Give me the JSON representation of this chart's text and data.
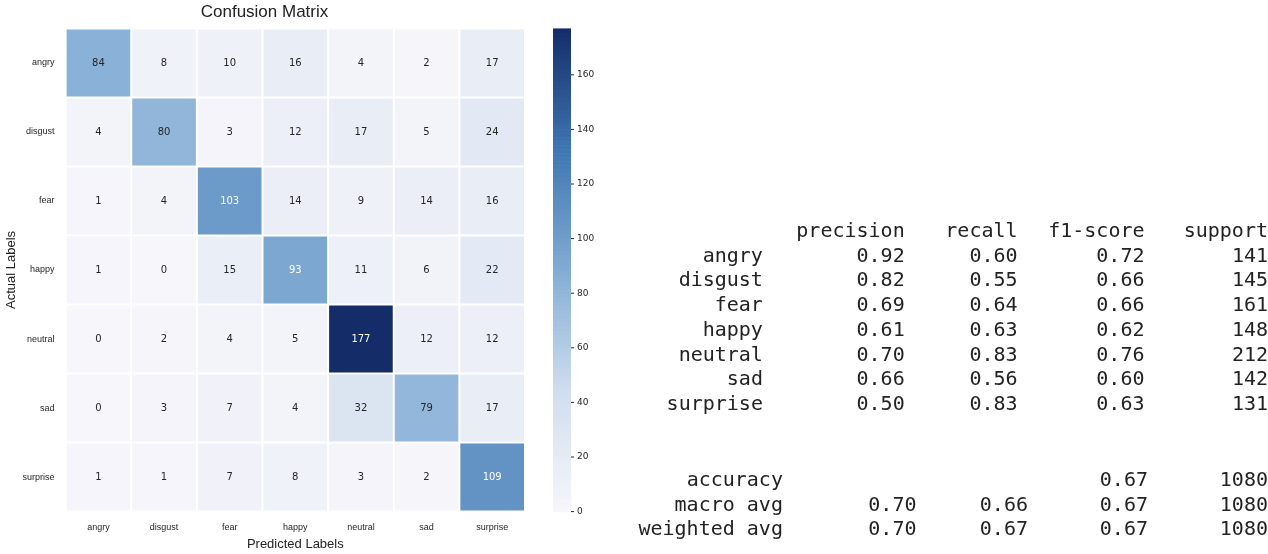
{
  "chart_data": [
    {
      "type": "heatmap",
      "title": "Confusion Matrix",
      "xlabel": "Predicted Labels",
      "ylabel": "Actual Labels",
      "categories": [
        "angry",
        "disgust",
        "fear",
        "happy",
        "neutral",
        "sad",
        "surprise"
      ],
      "y_categories": [
        "angry",
        "disgust",
        "fear",
        "happy",
        "neutral",
        "sad",
        "surprise"
      ],
      "cells": [
        [
          84,
          8,
          10,
          16,
          4,
          2,
          17
        ],
        [
          4,
          80,
          3,
          12,
          17,
          5,
          24
        ],
        [
          1,
          4,
          103,
          14,
          9,
          14,
          16
        ],
        [
          1,
          0,
          15,
          93,
          11,
          6,
          22
        ],
        [
          0,
          2,
          4,
          5,
          177,
          12,
          12
        ],
        [
          0,
          3,
          7,
          4,
          32,
          79,
          17
        ],
        [
          1,
          1,
          7,
          8,
          3,
          2,
          109
        ]
      ],
      "clim": [
        0,
        177
      ],
      "cticks": [
        0,
        20,
        40,
        60,
        80,
        100,
        120,
        140,
        160
      ],
      "data_labels": true
    },
    {
      "type": "heatmap",
      "data_labels": true,
      "categories": [
        "precision",
        "recall",
        "f1-score",
        "support"
      ],
      "y_categories": [
        "angry",
        "disgust",
        "fear",
        "happy",
        "neutral",
        "sad",
        "surprise"
      ],
      "cells": [
        [
          0.92,
          0.6,
          0.72,
          141
        ],
        [
          0.82,
          0.55,
          0.66,
          145
        ],
        [
          0.69,
          0.64,
          0.66,
          161
        ],
        [
          0.61,
          0.63,
          0.62,
          148
        ],
        [
          0.7,
          0.83,
          0.76,
          212
        ],
        [
          0.66,
          0.56,
          0.6,
          142
        ],
        [
          0.5,
          0.83,
          0.63,
          131
        ]
      ],
      "cell_labels": [
        [
          "0.92",
          "0.60",
          "0.72",
          "141"
        ],
        [
          "0.82",
          "0.55",
          "0.66",
          "145"
        ],
        [
          "0.69",
          "0.64",
          "0.66",
          "161"
        ],
        [
          "0.61",
          "0.63",
          "0.62",
          "148"
        ],
        [
          "0.70",
          "0.83",
          "0.76",
          "212"
        ],
        [
          "0.66",
          "0.56",
          "0.60",
          "142"
        ],
        [
          "0.50",
          "0.83",
          "0.63",
          "131"
        ]
      ]
    },
    {
      "type": "heatmap",
      "data_labels": true,
      "categories": [
        null,
        null,
        null,
        null
      ],
      "y_categories": [
        "accuracy",
        "macro avg",
        "weighted avg"
      ],
      "cells": [
        [
          null,
          null,
          0.67,
          1080
        ],
        [
          0.7,
          0.66,
          0.67,
          1080
        ],
        [
          0.7,
          0.67,
          0.67,
          1080
        ]
      ],
      "cell_labels": [
        [
          null,
          null,
          "0.67",
          "1080"
        ],
        [
          "0.70",
          "0.66",
          "0.67",
          "1080"
        ],
        [
          "0.70",
          "0.67",
          "0.67",
          "1080"
        ]
      ]
    }
  ]
}
